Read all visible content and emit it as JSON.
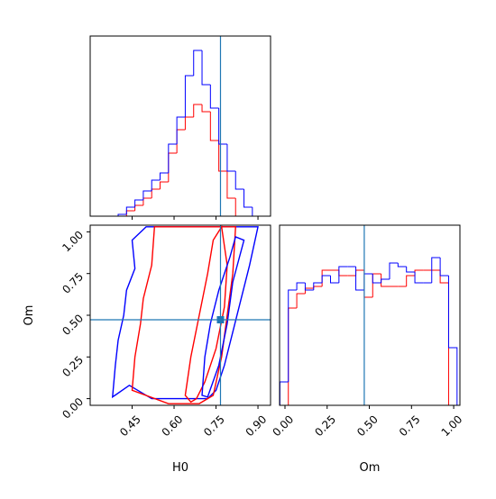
{
  "chart_data": [
    {
      "type": "histogram",
      "xlim": [
        0.3,
        0.945
      ],
      "xticks": [
        0.45,
        0.6,
        0.75,
        0.9
      ],
      "ylim": [
        0,
        100
      ],
      "bins": [
        0.4,
        0.43,
        0.46,
        0.49,
        0.52,
        0.55,
        0.58,
        0.61,
        0.64,
        0.67,
        0.7,
        0.73,
        0.76,
        0.79,
        0.82,
        0.85,
        0.88,
        0.91,
        0.94
      ],
      "series": [
        {
          "color": "#ff0000",
          "values": [
            0,
            3,
            6,
            10,
            15,
            19,
            35,
            48,
            55,
            62,
            58,
            42,
            25,
            10,
            0,
            0,
            0,
            0
          ]
        },
        {
          "color": "#0000ff",
          "values": [
            1,
            5,
            9,
            14,
            20,
            24,
            40,
            55,
            78,
            92,
            73,
            60,
            40,
            25,
            15,
            5,
            0,
            0
          ]
        }
      ],
      "truth": 0.766,
      "truth_color": "#1f77b4"
    },
    {
      "type": "contour",
      "xlabel": "H0",
      "ylabel": "Om",
      "xlim": [
        0.3,
        0.945
      ],
      "xticks": [
        0.45,
        {
          "value": 0.6,
          "label": "0.60"
        },
        0.75,
        {
          "value": 0.9,
          "label": "0.90"
        }
      ],
      "ylim": [
        -0.04,
        1.04
      ],
      "yticks": [
        {
          "value": 0,
          "label": "0.00"
        },
        0.25,
        {
          "value": 0.5,
          "label": "0.50"
        },
        0.75,
        {
          "value": 1,
          "label": "1.00"
        }
      ],
      "contours": [
        {
          "color": "#0000ff",
          "x": [
            0.38,
            0.39,
            0.4,
            0.42,
            0.43,
            0.46,
            0.45,
            0.5,
            0.9,
            0.87,
            0.84,
            0.81,
            0.78,
            0.75,
            0.72,
            0.52,
            0.44
          ],
          "y": [
            0.01,
            0.2,
            0.35,
            0.5,
            0.65,
            0.78,
            0.95,
            1.03,
            1.03,
            0.8,
            0.6,
            0.4,
            0.2,
            0.05,
            0.0,
            0.0,
            0.08
          ]
        },
        {
          "color": "#ff0000",
          "x": [
            0.45,
            0.46,
            0.48,
            0.49,
            0.52,
            0.53,
            0.57,
            0.82,
            0.81,
            0.79,
            0.77,
            0.74,
            0.69,
            0.58
          ],
          "y": [
            0.05,
            0.25,
            0.45,
            0.6,
            0.8,
            1.03,
            1.03,
            1.03,
            0.75,
            0.5,
            0.25,
            0.02,
            -0.03,
            -0.03
          ]
        },
        {
          "color": "#ff0000",
          "x": [
            0.64,
            0.66,
            0.69,
            0.72,
            0.74,
            0.77,
            0.79,
            0.78,
            0.75,
            0.71,
            0.68,
            0.66
          ],
          "y": [
            0.02,
            0.25,
            0.5,
            0.75,
            0.95,
            1.03,
            0.8,
            0.55,
            0.3,
            0.1,
            0.0,
            -0.02
          ]
        },
        {
          "color": "#0000ff",
          "x": [
            0.7,
            0.71,
            0.73,
            0.76,
            0.8,
            0.82,
            0.85,
            0.81,
            0.79,
            0.76,
            0.72
          ],
          "y": [
            0.02,
            0.25,
            0.45,
            0.65,
            0.85,
            0.97,
            0.95,
            0.7,
            0.45,
            0.2,
            0.01
          ]
        }
      ],
      "truth": [
        0.766,
        0.473
      ],
      "truth_color": "#1f77b4"
    },
    {
      "type": "histogram",
      "xlabel": "Om",
      "xlim": [
        -0.032,
        1.037
      ],
      "xticks": [
        {
          "value": 0,
          "label": "0.00"
        },
        0.25,
        {
          "value": 0.5,
          "label": "0.50"
        },
        0.75,
        {
          "value": 1,
          "label": "1.00"
        }
      ],
      "ylim": [
        0,
        100
      ],
      "bins": [
        -0.03,
        0.02,
        0.07,
        0.12,
        0.17,
        0.22,
        0.27,
        0.32,
        0.37,
        0.42,
        0.47,
        0.52,
        0.57,
        0.62,
        0.67,
        0.72,
        0.77,
        0.82,
        0.87,
        0.92,
        0.97,
        1.02
      ],
      "series": [
        {
          "color": "#ff0000",
          "values": [
            0,
            54,
            62,
            65,
            66,
            75,
            75,
            72,
            72,
            75,
            60,
            73,
            66,
            66,
            66,
            72,
            75,
            75,
            75,
            68,
            0
          ]
        },
        {
          "color": "#0000ff",
          "values": [
            13,
            64,
            68,
            64,
            68,
            72,
            68,
            77,
            77,
            64,
            73,
            68,
            70,
            79,
            77,
            74,
            68,
            68,
            82,
            72,
            32
          ]
        }
      ],
      "truth": 0.47,
      "truth_color": "#1f77b4"
    }
  ]
}
